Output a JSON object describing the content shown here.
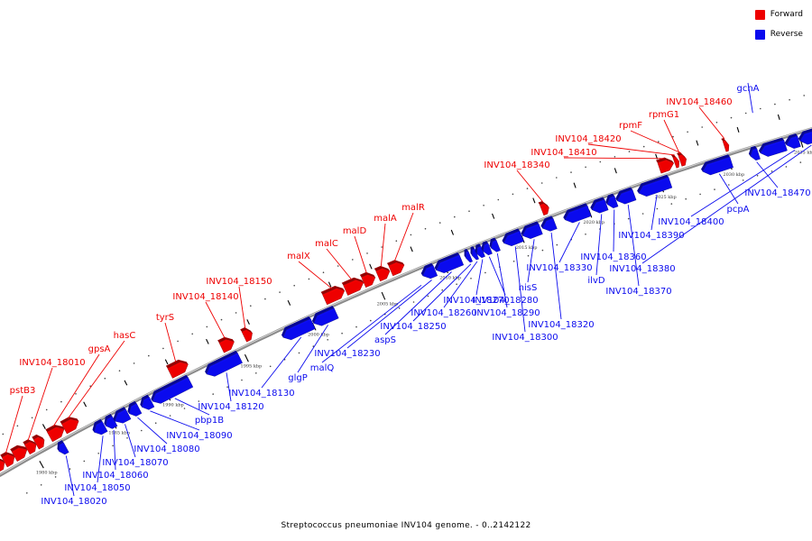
{
  "title": "Streptococcus pneumoniae INV104 genome. - 0..2142122",
  "legend": {
    "forward": {
      "label": "Forward",
      "color": "#ee0000"
    },
    "reverse": {
      "label": "Reverse",
      "color": "#0a0aee"
    }
  },
  "colors": {
    "forward": "#ee0000",
    "reverse": "#0a0aee",
    "backbone": "#8a8a8a"
  },
  "scale": {
    "unit": "kbp",
    "ticks": [
      "1980 kbp",
      "1985 kbp",
      "1990 kbp",
      "1995 kbp",
      "2000 kbp",
      "2005 kbp",
      "2010 kbp",
      "2015 kbp",
      "2020 kbp",
      "2025 kbp",
      "2030 kbp",
      "2035 kbp"
    ]
  },
  "forward_labels": [
    "pstB3",
    "INV104_18010",
    "gpsA",
    "hasC",
    "tyrS",
    "INV104_18140",
    "INV104_18150",
    "malX",
    "malC",
    "malD",
    "malA",
    "malR",
    "INV104_18340",
    "INV104_18410",
    "INV104_18420",
    "rpmF",
    "rpmG1",
    "INV104_18460"
  ],
  "reverse_labels": [
    "INV104_18020",
    "INV104_18050",
    "INV104_18060",
    "INV104_18070",
    "INV104_18080",
    "INV104_18090",
    "pbp1B",
    "INV104_18120",
    "INV104_18130",
    "glgP",
    "malQ",
    "INV104_18230",
    "aspS",
    "INV104_18250",
    "INV104_18260",
    "INV104_18270",
    "INV104_18280",
    "INV104_18290",
    "INV104_18300",
    "hisS",
    "INV104_18320",
    "INV104_18330",
    "ilvD",
    "INV104_18360",
    "INV104_18370",
    "INV104_18380",
    "INV104_18390",
    "INV104_18400",
    "pcpA",
    "INV104_18470",
    "gcnA"
  ]
}
